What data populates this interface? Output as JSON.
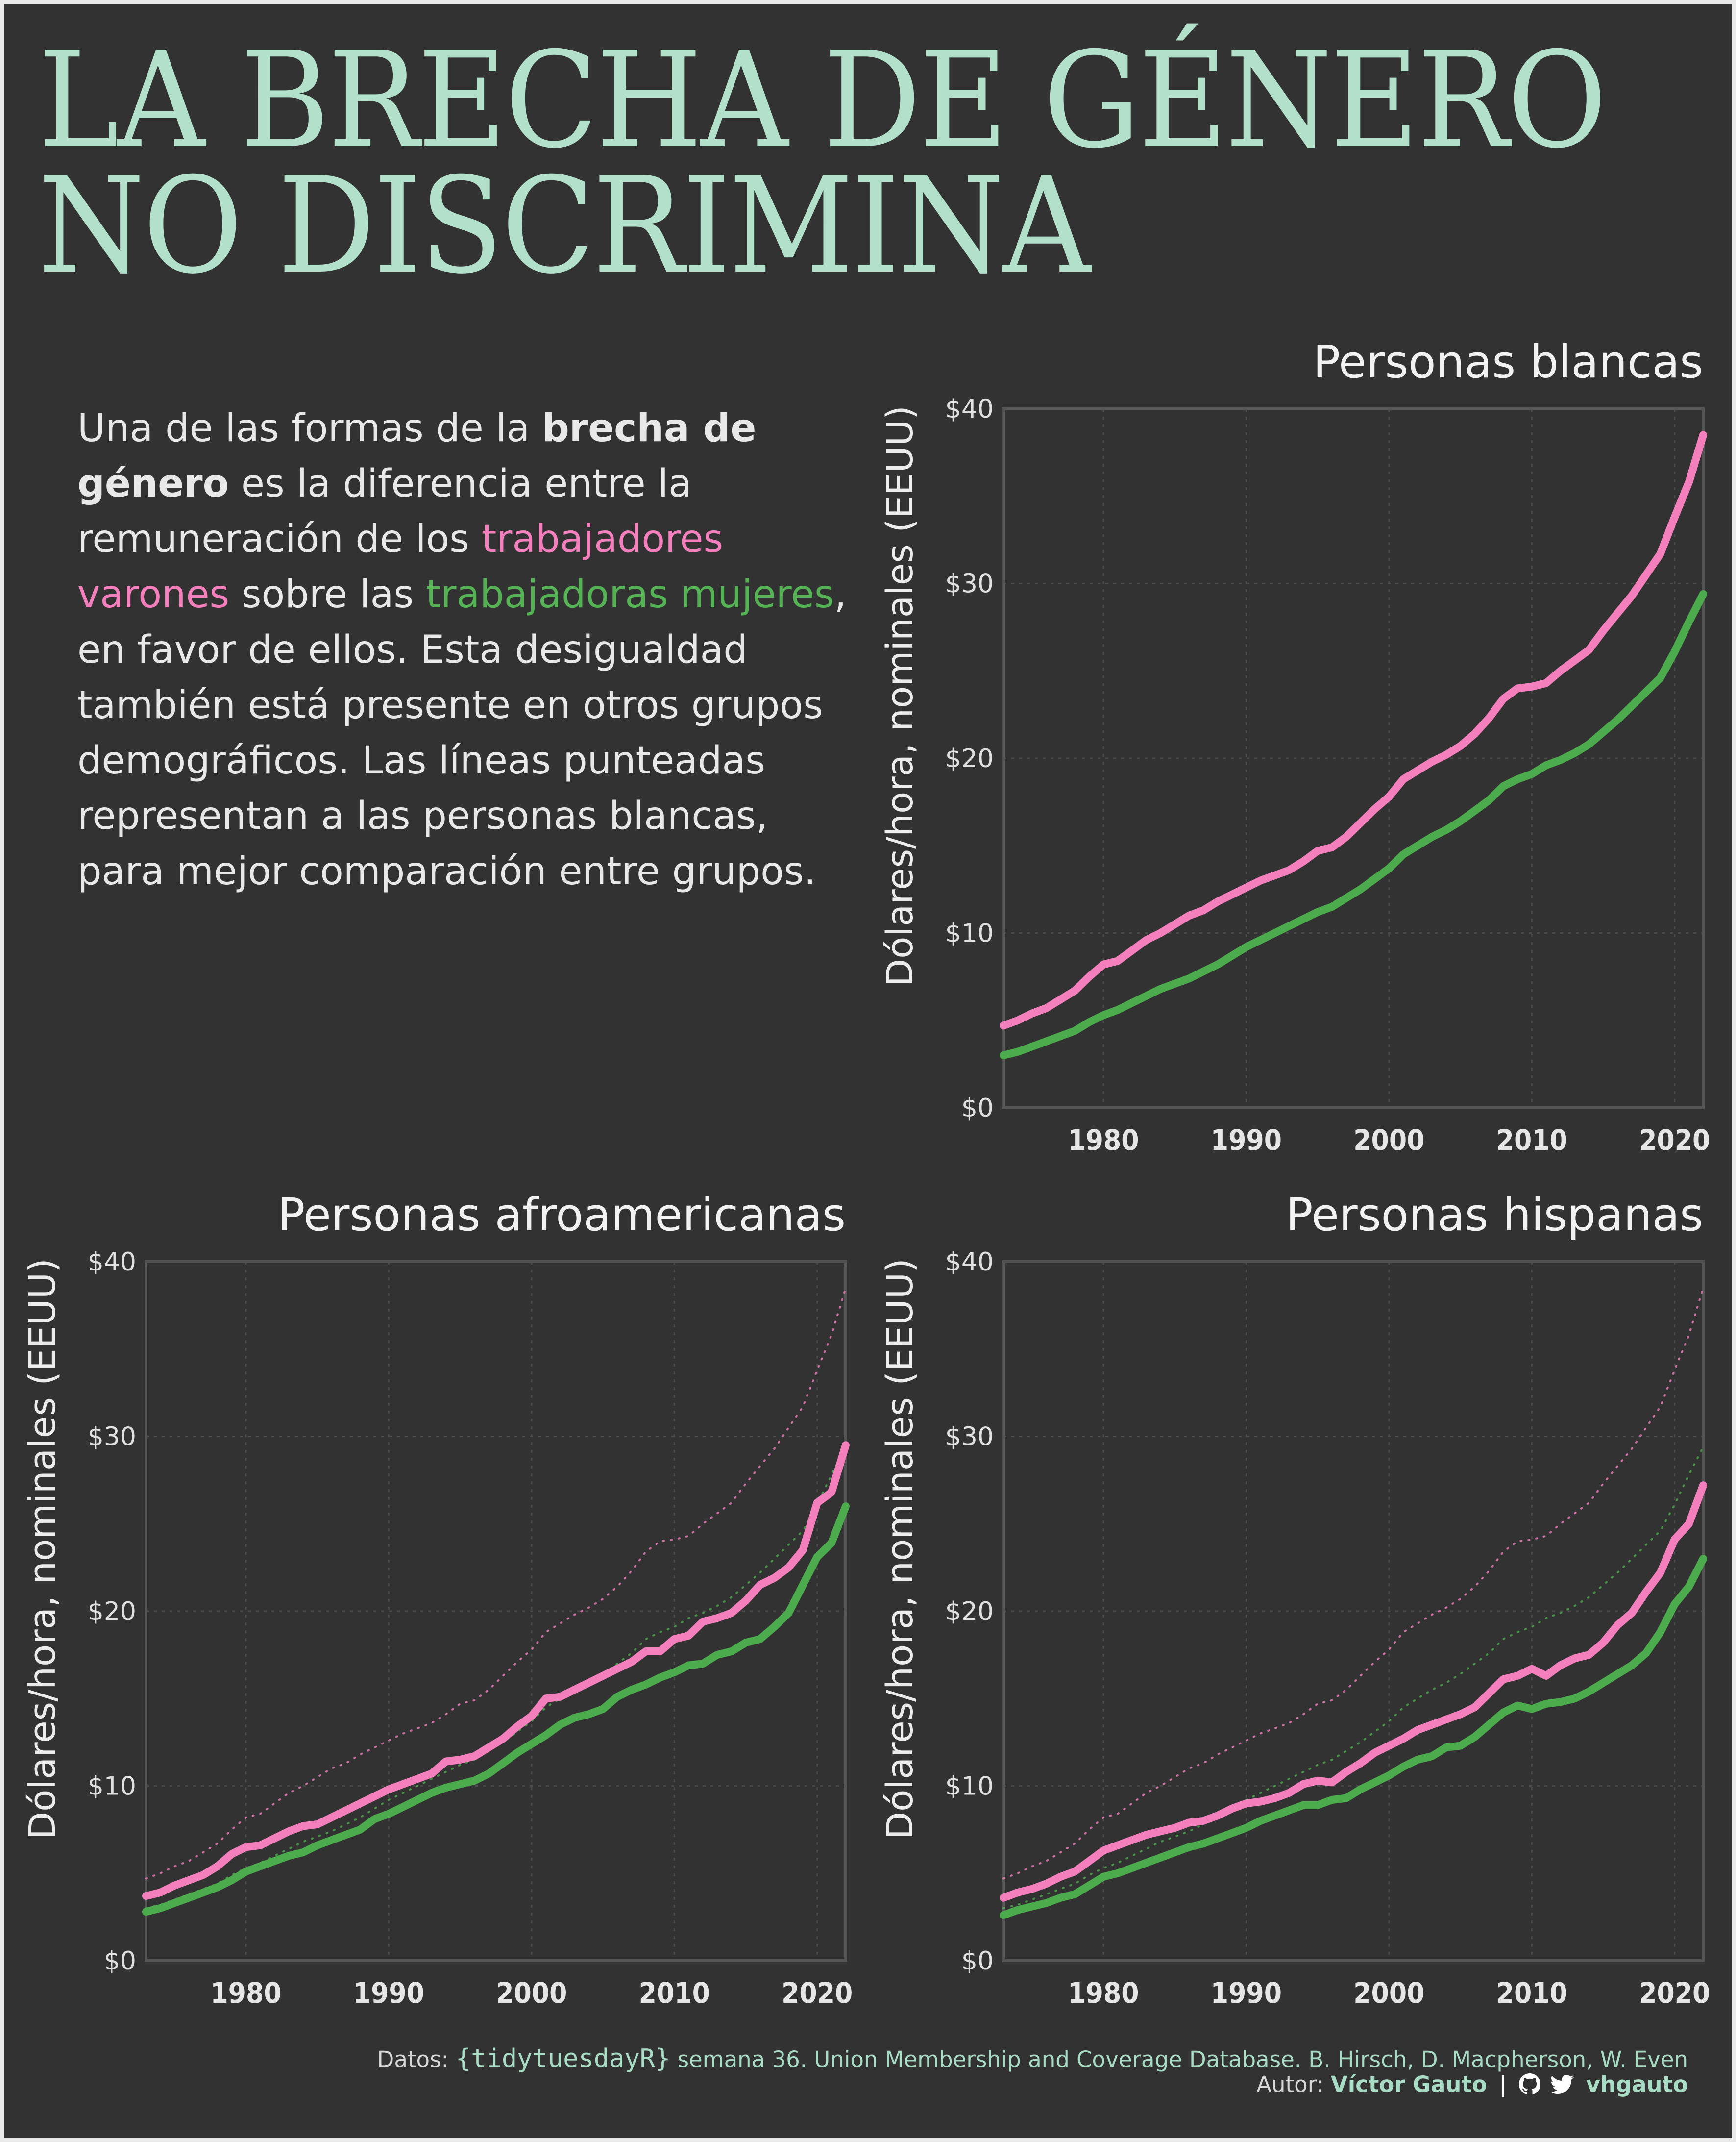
{
  "title": {
    "line1": "LA BRECHA DE GÉNERO",
    "line2": "NO DISCRIMINA"
  },
  "intro": {
    "p1": "Una de las formas de la ",
    "b1": "brecha de género",
    "p2": " es la diferencia entre la remuneración de los ",
    "men": "trabajadores varones",
    "p3": " sobre las ",
    "women": "trabajadoras mujeres",
    "p4": ", en favor de ellos. Esta desigualdad también está presente en otros grupos demográficos. Las líneas punteadas representan a las personas blancas, para mejor comparación entre grupos."
  },
  "colors": {
    "background": "#323232",
    "title": "#b2e0cb",
    "men": "#f37fbd",
    "women": "#4cab4c",
    "axis": "#555555"
  },
  "chart_data": [
    {
      "type": "line",
      "title": "Personas blancas",
      "ylabel": "Dólares/hora, nominales (EEUU)",
      "xlabel": "",
      "xlim": [
        1973,
        2022
      ],
      "ylim": [
        0,
        40
      ],
      "xticks": [
        "1980",
        "1990",
        "2000",
        "2010",
        "2020"
      ],
      "yticks": [
        "$0",
        "$10",
        "$20",
        "$30",
        "$40"
      ],
      "grid": true,
      "x": [
        1973,
        1974,
        1975,
        1976,
        1977,
        1978,
        1979,
        1980,
        1981,
        1982,
        1983,
        1984,
        1985,
        1986,
        1987,
        1988,
        1989,
        1990,
        1991,
        1992,
        1993,
        1994,
        1995,
        1996,
        1997,
        1998,
        1999,
        2000,
        2001,
        2002,
        2003,
        2004,
        2005,
        2006,
        2007,
        2008,
        2009,
        2010,
        2011,
        2012,
        2013,
        2014,
        2015,
        2016,
        2017,
        2018,
        2019,
        2020,
        2021,
        2022
      ],
      "series": [
        {
          "name": "Varones",
          "style": "solid",
          "values": [
            4.7,
            5.0,
            5.4,
            5.7,
            6.2,
            6.7,
            7.5,
            8.2,
            8.4,
            9.0,
            9.6,
            10.0,
            10.5,
            11.0,
            11.3,
            11.8,
            12.2,
            12.6,
            13.0,
            13.3,
            13.6,
            14.1,
            14.7,
            14.9,
            15.5,
            16.3,
            17.1,
            17.8,
            18.8,
            19.3,
            19.8,
            20.2,
            20.7,
            21.4,
            22.3,
            23.4,
            24.0,
            24.1,
            24.3,
            25.0,
            25.6,
            26.2,
            27.3,
            28.3,
            29.3,
            30.5,
            31.7,
            33.8,
            35.8,
            38.5
          ]
        },
        {
          "name": "Mujeres",
          "style": "solid",
          "values": [
            3.0,
            3.2,
            3.5,
            3.8,
            4.1,
            4.4,
            4.9,
            5.3,
            5.6,
            6.0,
            6.4,
            6.8,
            7.1,
            7.4,
            7.8,
            8.2,
            8.7,
            9.2,
            9.6,
            10.0,
            10.4,
            10.8,
            11.2,
            11.5,
            12.0,
            12.5,
            13.1,
            13.7,
            14.5,
            15.0,
            15.5,
            15.9,
            16.4,
            17.0,
            17.6,
            18.4,
            18.8,
            19.1,
            19.6,
            19.9,
            20.3,
            20.8,
            21.5,
            22.2,
            23.0,
            23.8,
            24.6,
            26.1,
            27.8,
            29.4
          ]
        }
      ]
    },
    {
      "type": "line",
      "title": "Personas afroamericanas",
      "ylabel": "Dólares/hora, nominales (EEUU)",
      "xlabel": "",
      "xlim": [
        1973,
        2022
      ],
      "ylim": [
        0,
        40
      ],
      "xticks": [
        "1980",
        "1990",
        "2000",
        "2010",
        "2020"
      ],
      "yticks": [
        "$0",
        "$10",
        "$20",
        "$30",
        "$40"
      ],
      "grid": true,
      "x": [
        1973,
        1974,
        1975,
        1976,
        1977,
        1978,
        1979,
        1980,
        1981,
        1982,
        1983,
        1984,
        1985,
        1986,
        1987,
        1988,
        1989,
        1990,
        1991,
        1992,
        1993,
        1994,
        1995,
        1996,
        1997,
        1998,
        1999,
        2000,
        2001,
        2002,
        2003,
        2004,
        2005,
        2006,
        2007,
        2008,
        2009,
        2010,
        2011,
        2012,
        2013,
        2014,
        2015,
        2016,
        2017,
        2018,
        2019,
        2020,
        2021,
        2022
      ],
      "series": [
        {
          "name": "Varones",
          "style": "solid",
          "values": [
            3.7,
            3.9,
            4.3,
            4.6,
            4.9,
            5.4,
            6.1,
            6.5,
            6.6,
            7.0,
            7.4,
            7.7,
            7.8,
            8.2,
            8.6,
            9.0,
            9.4,
            9.8,
            10.1,
            10.4,
            10.7,
            11.4,
            11.5,
            11.7,
            12.2,
            12.7,
            13.4,
            14.0,
            15.0,
            15.1,
            15.5,
            15.9,
            16.3,
            16.7,
            17.1,
            17.7,
            17.7,
            18.4,
            18.6,
            19.4,
            19.6,
            19.9,
            20.6,
            21.5,
            21.9,
            22.5,
            23.5,
            26.2,
            26.8,
            29.5
          ]
        },
        {
          "name": "Mujeres",
          "style": "solid",
          "values": [
            2.8,
            3.0,
            3.3,
            3.6,
            3.9,
            4.2,
            4.6,
            5.1,
            5.4,
            5.7,
            6.0,
            6.2,
            6.6,
            6.9,
            7.2,
            7.5,
            8.1,
            8.4,
            8.8,
            9.2,
            9.6,
            9.9,
            10.1,
            10.3,
            10.7,
            11.3,
            11.9,
            12.4,
            12.9,
            13.5,
            13.9,
            14.1,
            14.4,
            15.1,
            15.5,
            15.8,
            16.2,
            16.5,
            16.9,
            17.0,
            17.5,
            17.7,
            18.2,
            18.4,
            19.1,
            19.9,
            21.5,
            23.1,
            23.9,
            26.0
          ]
        },
        {
          "name": "Varones blancos",
          "style": "dotted",
          "values": [
            4.7,
            5.0,
            5.4,
            5.7,
            6.2,
            6.7,
            7.5,
            8.2,
            8.4,
            9.0,
            9.6,
            10.0,
            10.5,
            11.0,
            11.3,
            11.8,
            12.2,
            12.6,
            13.0,
            13.3,
            13.6,
            14.1,
            14.7,
            14.9,
            15.5,
            16.3,
            17.1,
            17.8,
            18.8,
            19.3,
            19.8,
            20.2,
            20.7,
            21.4,
            22.3,
            23.4,
            24.0,
            24.1,
            24.3,
            25.0,
            25.6,
            26.2,
            27.3,
            28.3,
            29.3,
            30.5,
            31.7,
            33.8,
            35.8,
            38.5
          ]
        },
        {
          "name": "Mujeres blancas",
          "style": "dotted",
          "values": [
            3.0,
            3.2,
            3.5,
            3.8,
            4.1,
            4.4,
            4.9,
            5.3,
            5.6,
            6.0,
            6.4,
            6.8,
            7.1,
            7.4,
            7.8,
            8.2,
            8.7,
            9.2,
            9.6,
            10.0,
            10.4,
            10.8,
            11.2,
            11.5,
            12.0,
            12.5,
            13.1,
            13.7,
            14.5,
            15.0,
            15.5,
            15.9,
            16.4,
            17.0,
            17.6,
            18.4,
            18.8,
            19.1,
            19.6,
            19.9,
            20.3,
            20.8,
            21.5,
            22.2,
            23.0,
            23.8,
            24.6,
            26.1,
            27.8,
            29.4
          ]
        }
      ]
    },
    {
      "type": "line",
      "title": "Personas hispanas",
      "ylabel": "Dólares/hora, nominales (EEUU)",
      "xlabel": "",
      "xlim": [
        1973,
        2022
      ],
      "ylim": [
        0,
        40
      ],
      "xticks": [
        "1980",
        "1990",
        "2000",
        "2010",
        "2020"
      ],
      "yticks": [
        "$0",
        "$10",
        "$20",
        "$30",
        "$40"
      ],
      "grid": true,
      "x": [
        1973,
        1974,
        1975,
        1976,
        1977,
        1978,
        1979,
        1980,
        1981,
        1982,
        1983,
        1984,
        1985,
        1986,
        1987,
        1988,
        1989,
        1990,
        1991,
        1992,
        1993,
        1994,
        1995,
        1996,
        1997,
        1998,
        1999,
        2000,
        2001,
        2002,
        2003,
        2004,
        2005,
        2006,
        2007,
        2008,
        2009,
        2010,
        2011,
        2012,
        2013,
        2014,
        2015,
        2016,
        2017,
        2018,
        2019,
        2020,
        2021,
        2022
      ],
      "series": [
        {
          "name": "Varones",
          "style": "solid",
          "values": [
            3.6,
            3.9,
            4.1,
            4.4,
            4.8,
            5.1,
            5.7,
            6.3,
            6.6,
            6.9,
            7.2,
            7.4,
            7.6,
            7.9,
            8.0,
            8.3,
            8.7,
            9.0,
            9.1,
            9.3,
            9.6,
            10.1,
            10.3,
            10.2,
            10.8,
            11.3,
            11.9,
            12.3,
            12.7,
            13.2,
            13.5,
            13.8,
            14.1,
            14.5,
            15.3,
            16.1,
            16.3,
            16.7,
            16.3,
            16.9,
            17.3,
            17.5,
            18.2,
            19.2,
            19.9,
            21.1,
            22.2,
            24.1,
            25.0,
            27.2
          ]
        },
        {
          "name": "Mujeres",
          "style": "solid",
          "values": [
            2.6,
            2.9,
            3.1,
            3.3,
            3.6,
            3.8,
            4.3,
            4.8,
            5.0,
            5.3,
            5.6,
            5.9,
            6.2,
            6.5,
            6.7,
            7.0,
            7.3,
            7.6,
            8.0,
            8.3,
            8.6,
            8.9,
            8.9,
            9.2,
            9.3,
            9.8,
            10.2,
            10.6,
            11.1,
            11.5,
            11.7,
            12.2,
            12.3,
            12.8,
            13.5,
            14.2,
            14.6,
            14.4,
            14.7,
            14.8,
            15.0,
            15.4,
            15.9,
            16.4,
            16.9,
            17.6,
            18.8,
            20.4,
            21.4,
            23.0
          ]
        },
        {
          "name": "Varones blancos",
          "style": "dotted",
          "values": [
            4.7,
            5.0,
            5.4,
            5.7,
            6.2,
            6.7,
            7.5,
            8.2,
            8.4,
            9.0,
            9.6,
            10.0,
            10.5,
            11.0,
            11.3,
            11.8,
            12.2,
            12.6,
            13.0,
            13.3,
            13.6,
            14.1,
            14.7,
            14.9,
            15.5,
            16.3,
            17.1,
            17.8,
            18.8,
            19.3,
            19.8,
            20.2,
            20.7,
            21.4,
            22.3,
            23.4,
            24.0,
            24.1,
            24.3,
            25.0,
            25.6,
            26.2,
            27.3,
            28.3,
            29.3,
            30.5,
            31.7,
            33.8,
            35.8,
            38.5
          ]
        },
        {
          "name": "Mujeres blancas",
          "style": "dotted",
          "values": [
            3.0,
            3.2,
            3.5,
            3.8,
            4.1,
            4.4,
            4.9,
            5.3,
            5.6,
            6.0,
            6.4,
            6.8,
            7.1,
            7.4,
            7.8,
            8.2,
            8.7,
            9.2,
            9.6,
            10.0,
            10.4,
            10.8,
            11.2,
            11.5,
            12.0,
            12.5,
            13.1,
            13.7,
            14.5,
            15.0,
            15.5,
            15.9,
            16.4,
            17.0,
            17.6,
            18.4,
            18.8,
            19.1,
            19.6,
            19.9,
            20.3,
            20.8,
            21.5,
            22.2,
            23.0,
            23.8,
            24.6,
            26.1,
            27.8,
            29.4
          ]
        }
      ]
    }
  ],
  "caption": {
    "data_prefix": "Datos:",
    "data_source_mono": "{tidytuesdayR}",
    "data_source_rest": "semana 36. Union Membership and Coverage Database. B. Hirsch, D. Macpherson, W. Even",
    "author_prefix": "Autor:",
    "author_name": "Víctor Gauto",
    "separator": "|",
    "handle": "vhgauto",
    "icons": [
      "github-icon",
      "twitter-icon"
    ]
  }
}
